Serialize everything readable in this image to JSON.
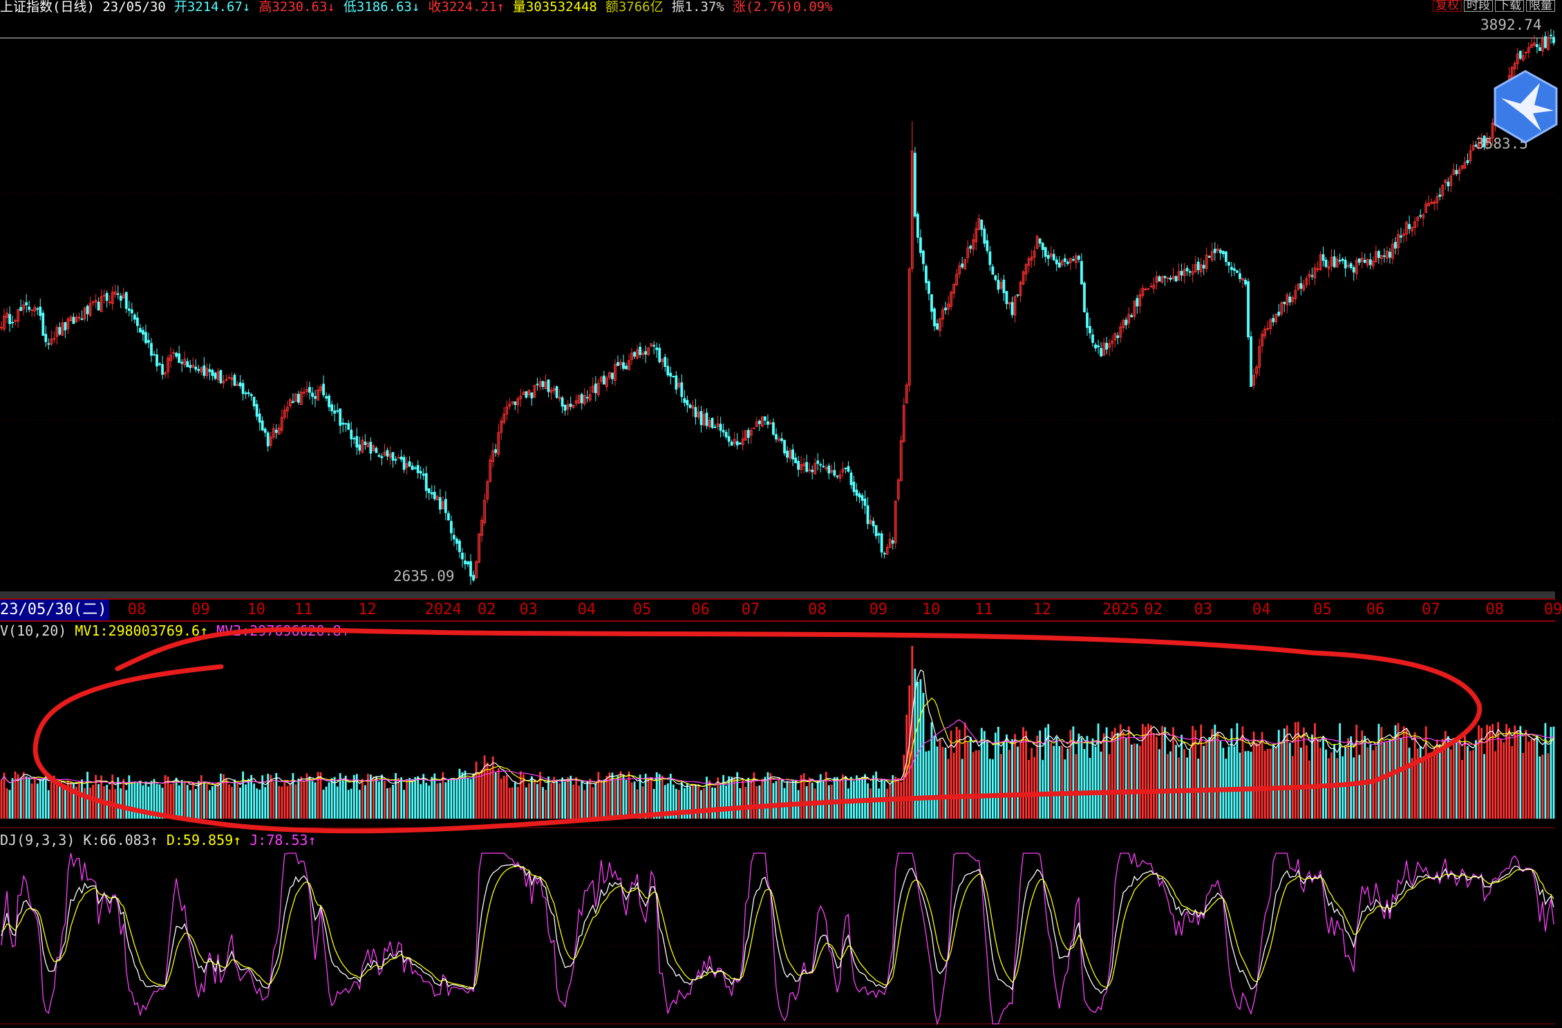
{
  "header": {
    "title": "上证指数(日线) 23/05/30",
    "open": "开3214.67↓",
    "high": "高3230.63↓",
    "low": "低3186.63↓",
    "close": "收3224.21↑",
    "volume": "量303532448",
    "amount": "额3766亿",
    "amplitude": "振1.37%",
    "change": "涨(2.76)0.09%"
  },
  "toolbar": {
    "buttons": [
      "复权",
      "时段",
      "下载",
      "限量"
    ]
  },
  "price_labels": {
    "high": "3892.74",
    "mid": "3583.5",
    "low": "2635.09"
  },
  "date_axis": {
    "selected": "23/05/30(二)",
    "months": [
      {
        "l": "08",
        "d": 45
      },
      {
        "l": "09",
        "d": 68
      },
      {
        "l": "10",
        "d": 88
      },
      {
        "l": "11",
        "d": 105
      },
      {
        "l": "12",
        "d": 128
      },
      {
        "l": "2024",
        "d": 152
      },
      {
        "l": "02",
        "d": 171
      },
      {
        "l": "03",
        "d": 186
      },
      {
        "l": "04",
        "d": 207
      },
      {
        "l": "05",
        "d": 227
      },
      {
        "l": "06",
        "d": 248
      },
      {
        "l": "07",
        "d": 266
      },
      {
        "l": "08",
        "d": 290
      },
      {
        "l": "09",
        "d": 312
      },
      {
        "l": "10",
        "d": 331
      },
      {
        "l": "11",
        "d": 350
      },
      {
        "l": "12",
        "d": 371
      },
      {
        "l": "2025",
        "d": 396
      },
      {
        "l": "02",
        "d": 411
      },
      {
        "l": "03",
        "d": 429
      },
      {
        "l": "04",
        "d": 450
      },
      {
        "l": "05",
        "d": 472
      },
      {
        "l": "06",
        "d": 491
      },
      {
        "l": "07",
        "d": 511
      },
      {
        "l": "08",
        "d": 534
      },
      {
        "l": "09",
        "d": 555
      }
    ]
  },
  "volume_panel": {
    "name": "V(10,20)",
    "mv1": "MV1:298003769.6↑",
    "mv2": "MV2:297696620.8↑"
  },
  "kdj_panel": {
    "name": "DJ(9,3,3)",
    "k": "K:66.083↑",
    "d": "D:59.859↑",
    "j": "J:78.53↑"
  },
  "colors": {
    "up": "#ff3232",
    "down": "#54ffff",
    "k": "#ffffff",
    "d": "#ffff00",
    "j": "#ff40ff",
    "annotation": "#e81c1c"
  },
  "chart_data": {
    "type": "candlestick",
    "days": 560,
    "ylim": [
      2635.09,
      3892.74
    ],
    "price_keypoints": [
      [
        0,
        3220
      ],
      [
        12,
        3260
      ],
      [
        16,
        3180
      ],
      [
        42,
        3290
      ],
      [
        59,
        3100
      ],
      [
        61,
        3150
      ],
      [
        89,
        3060
      ],
      [
        96,
        2950
      ],
      [
        105,
        3050
      ],
      [
        116,
        3060
      ],
      [
        127,
        2950
      ],
      [
        143,
        2900
      ],
      [
        150,
        2880
      ],
      [
        159,
        2800
      ],
      [
        170,
        2635
      ],
      [
        175,
        2870
      ],
      [
        182,
        3030
      ],
      [
        196,
        3080
      ],
      [
        204,
        3020
      ],
      [
        221,
        3110
      ],
      [
        234,
        3170
      ],
      [
        250,
        3010
      ],
      [
        264,
        2950
      ],
      [
        275,
        3000
      ],
      [
        286,
        2900
      ],
      [
        304,
        2880
      ],
      [
        318,
        2700
      ],
      [
        321,
        2730
      ],
      [
        326,
        3090
      ],
      [
        328,
        3600
      ],
      [
        329,
        3450
      ],
      [
        336,
        3200
      ],
      [
        343,
        3300
      ],
      [
        352,
        3450
      ],
      [
        357,
        3330
      ],
      [
        364,
        3250
      ],
      [
        373,
        3410
      ],
      [
        379,
        3350
      ],
      [
        388,
        3370
      ],
      [
        391,
        3200
      ],
      [
        396,
        3150
      ],
      [
        407,
        3240
      ],
      [
        411,
        3300
      ],
      [
        429,
        3330
      ],
      [
        437,
        3380
      ],
      [
        448,
        3320
      ],
      [
        450,
        3060
      ],
      [
        454,
        3200
      ],
      [
        464,
        3280
      ],
      [
        475,
        3360
      ],
      [
        486,
        3340
      ],
      [
        500,
        3380
      ],
      [
        507,
        3440
      ],
      [
        518,
        3510
      ],
      [
        527,
        3590
      ],
      [
        536,
        3640
      ],
      [
        546,
        3820
      ],
      [
        559,
        3860
      ]
    ]
  }
}
